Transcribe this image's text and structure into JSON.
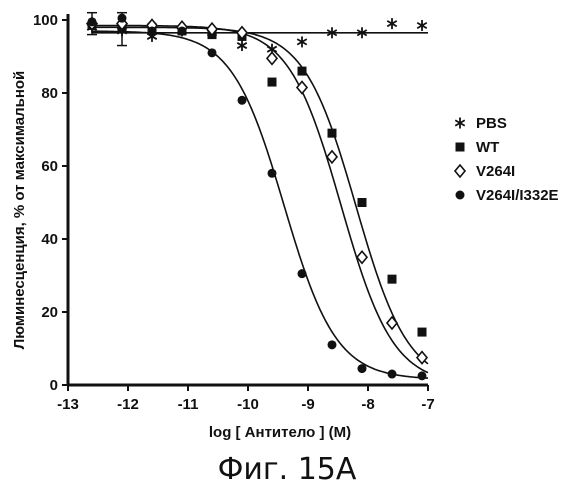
{
  "caption": "Фиг. 15А",
  "chart_data": {
    "type": "scatter",
    "title": "",
    "xlabel": "log [ Антитело ] (M)",
    "ylabel": "Люминесценция, % от максимальной",
    "xlim": [
      -13,
      -7
    ],
    "ylim": [
      0,
      100
    ],
    "xticks": [
      "-13",
      "-12",
      "-11",
      "-10",
      "-9",
      "-8",
      "-7"
    ],
    "yticks": [
      "0",
      "20",
      "40",
      "60",
      "80",
      "100"
    ],
    "grid": false,
    "legend": "right",
    "series": [
      {
        "name": "PBS",
        "marker": "asterisk",
        "x": [
          -12.6,
          -12.1,
          -11.6,
          -11.1,
          -10.6,
          -10.1,
          -9.6,
          -9.1,
          -8.6,
          -8.1,
          -7.6,
          -7.1
        ],
        "y": [
          98,
          97,
          95.5,
          97,
          96.5,
          93,
          92,
          94,
          96.5,
          96.5,
          99,
          98.5
        ],
        "fit": {
          "bottom": 96.5,
          "top": 96.5,
          "logec50": -9.5,
          "hill": 1
        }
      },
      {
        "name": "WT",
        "marker": "square",
        "x": [
          -12.6,
          -12.1,
          -11.6,
          -11.1,
          -10.6,
          -10.1,
          -9.6,
          -9.1,
          -8.6,
          -8.1,
          -7.6,
          -7.1
        ],
        "y": [
          98.5,
          98,
          98,
          97,
          96,
          95.5,
          83,
          86,
          69,
          50,
          29,
          14.5
        ],
        "fit": {
          "bottom": 0,
          "top": 98,
          "logec50": -8.2,
          "hill": 1
        }
      },
      {
        "name": "V264I",
        "marker": "diamond",
        "x": [
          -12.6,
          -12.1,
          -11.6,
          -11.1,
          -10.6,
          -10.1,
          -9.6,
          -9.1,
          -8.6,
          -8.1,
          -7.6,
          -7.1
        ],
        "y": [
          99,
          99,
          98.5,
          98,
          97.5,
          96.5,
          89.5,
          81.5,
          62.5,
          35,
          17,
          7.5
        ],
        "fit": {
          "bottom": 0,
          "top": 98.5,
          "logec50": -8.45,
          "hill": 1
        }
      },
      {
        "name": "V264I/I332E",
        "marker": "circle",
        "x": [
          -12.6,
          -12.1,
          -11.6,
          -11.1,
          -10.6,
          -10.1,
          -9.6,
          -9.1,
          -8.6,
          -8.1,
          -7.6,
          -7.1
        ],
        "y": [
          99.5,
          100.5,
          97,
          97,
          91,
          78,
          58,
          30.5,
          11,
          4.5,
          3,
          2.5
        ],
        "fit": {
          "bottom": 1.5,
          "top": 97,
          "logec50": -9.4,
          "hill": 1
        }
      }
    ],
    "error_bars": [
      {
        "x": -12.6,
        "y": 99,
        "low": 96,
        "high": 102
      },
      {
        "x": -12.1,
        "y": 97.5,
        "low": 93,
        "high": 102
      }
    ]
  }
}
